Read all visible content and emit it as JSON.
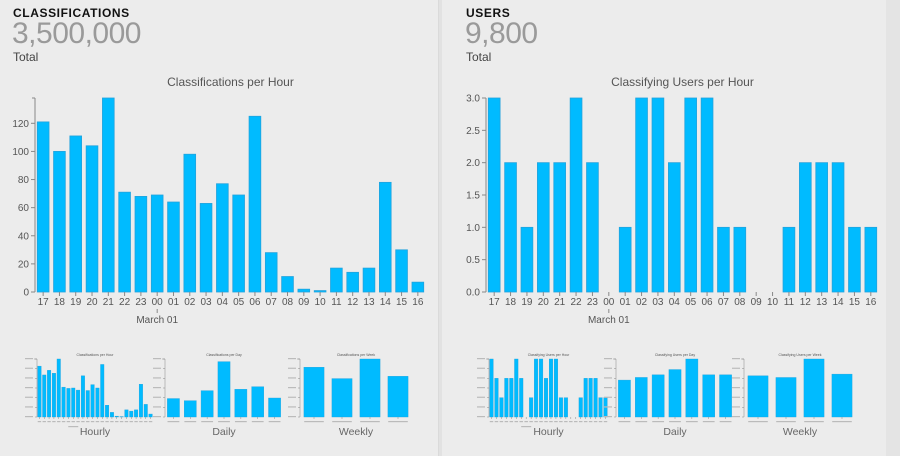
{
  "colors": {
    "bar": "#00bbff",
    "bar_stroke": "#22a3dd",
    "axis": "#888888",
    "text": "#555555"
  },
  "panels": [
    {
      "id": "classifications",
      "title": "CLASSIFICATIONS",
      "value": "3,500,000",
      "sub": "Total",
      "thumb_labels": [
        "Hourly",
        "Daily",
        "Weekly"
      ]
    },
    {
      "id": "users",
      "title": "USERS",
      "value": "9,800",
      "sub": "Total",
      "thumb_labels": [
        "Hourly",
        "Daily",
        "Weekly"
      ]
    }
  ],
  "chart_data": [
    {
      "type": "bar",
      "title": "Classifications per Hour",
      "xlabel": "",
      "ylabel": "",
      "categories": [
        "17",
        "18",
        "19",
        "20",
        "21",
        "22",
        "23",
        "00",
        "01",
        "02",
        "03",
        "04",
        "05",
        "06",
        "07",
        "08",
        "09",
        "10",
        "11",
        "12",
        "13",
        "14",
        "15",
        "16"
      ],
      "values": [
        121,
        100,
        111,
        104,
        138,
        71,
        68,
        69,
        64,
        98,
        63,
        77,
        69,
        125,
        28,
        11,
        2,
        1,
        17,
        14,
        17,
        78,
        30,
        7
      ],
      "ylim": [
        0,
        138
      ],
      "yticks": [
        0,
        20,
        40,
        60,
        80,
        100,
        120
      ],
      "date_marker": {
        "at": "00",
        "label": "March 01"
      },
      "grid": false
    },
    {
      "type": "bar",
      "title": "Classifying Users per Hour",
      "xlabel": "",
      "ylabel": "",
      "categories": [
        "17",
        "18",
        "19",
        "20",
        "21",
        "22",
        "23",
        "00",
        "01",
        "02",
        "03",
        "04",
        "05",
        "06",
        "07",
        "08",
        "09",
        "10",
        "11",
        "12",
        "13",
        "14",
        "15",
        "16"
      ],
      "values": [
        3,
        2,
        1,
        2,
        2,
        3,
        2,
        0,
        1,
        3,
        3,
        2,
        3,
        3,
        1,
        1,
        0,
        0,
        1,
        2,
        2,
        2,
        1,
        1
      ],
      "ylim": [
        0,
        3
      ],
      "yticks": [
        0.0,
        0.5,
        1.0,
        1.5,
        2.0,
        2.5,
        3.0
      ],
      "ytick_labels": [
        "0.0",
        "0.5",
        "1.0",
        "1.5",
        "2.0",
        "2.5",
        "3.0"
      ],
      "date_marker": {
        "at": "00",
        "label": "March 01"
      },
      "grid": false
    },
    {
      "type": "bar",
      "title": "Classifications per Hour",
      "label": "Hourly",
      "categories": [
        "17",
        "18",
        "19",
        "20",
        "21",
        "22",
        "23",
        "00",
        "01",
        "02",
        "03",
        "04",
        "05",
        "06",
        "07",
        "08",
        "09",
        "10",
        "11",
        "12",
        "13",
        "14",
        "15",
        "16"
      ],
      "values": [
        121,
        100,
        111,
        104,
        138,
        71,
        68,
        69,
        64,
        98,
        63,
        77,
        69,
        125,
        28,
        11,
        2,
        1,
        17,
        14,
        17,
        78,
        30,
        7
      ],
      "ylim": [
        0,
        138
      ]
    },
    {
      "type": "bar",
      "title": "Classifications per Day",
      "label": "Daily",
      "categories": [
        "February 23",
        "February 24",
        "February 25",
        "February 26",
        "February 27",
        "February 28",
        "March 01"
      ],
      "values": [
        700,
        620,
        1000,
        2100,
        1050,
        1150,
        720
      ],
      "ylim": [
        0,
        2200
      ]
    },
    {
      "type": "bar",
      "title": "Classifications per Week",
      "label": "Weekly",
      "categories": [
        "February 05",
        "February 12",
        "February 19",
        "February 26"
      ],
      "values": [
        6600,
        5100,
        7700,
        5400
      ],
      "ylim": [
        0,
        7700
      ]
    },
    {
      "type": "bar",
      "title": "Classifying Users per Hour",
      "label": "Hourly",
      "categories": [
        "17",
        "18",
        "19",
        "20",
        "21",
        "22",
        "23",
        "00",
        "01",
        "02",
        "03",
        "04",
        "05",
        "06",
        "07",
        "08",
        "09",
        "10",
        "11",
        "12",
        "13",
        "14",
        "15",
        "16"
      ],
      "values": [
        3,
        2,
        1,
        2,
        2,
        3,
        2,
        0,
        1,
        3,
        3,
        2,
        3,
        3,
        1,
        1,
        0,
        0,
        1,
        2,
        2,
        2,
        1,
        1
      ],
      "ylim": [
        0,
        3
      ]
    },
    {
      "type": "bar",
      "title": "Classifying Users per Day",
      "label": "Daily",
      "categories": [
        "February 23",
        "February 24",
        "February 25",
        "February 26",
        "February 27",
        "February 28",
        "March 01"
      ],
      "values": [
        70,
        75,
        80,
        90,
        110,
        80,
        80
      ],
      "ylim": [
        0,
        110
      ]
    },
    {
      "type": "bar",
      "title": "Classifying Users per Week",
      "label": "Weekly",
      "categories": [
        "February 05",
        "February 12",
        "February 19",
        "February 26"
      ],
      "values": [
        490,
        470,
        690,
        510
      ],
      "ylim": [
        0,
        690
      ]
    }
  ]
}
